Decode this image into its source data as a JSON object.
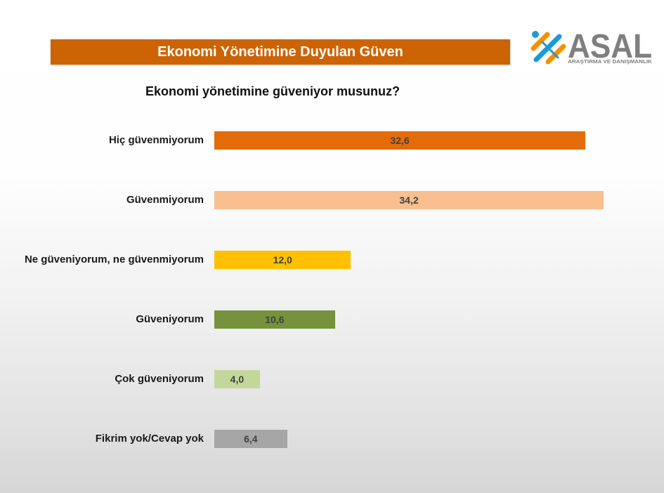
{
  "header": {
    "banner_title": "Ekonomi Yönetimine Duyulan Güven",
    "banner_color": "#CC6406"
  },
  "logo": {
    "name": "ASAL",
    "tagline": "ARAŞTIRMA VE DANIŞMANLIK",
    "text_color": "#7F7F7F",
    "accent_blue": "#1E9AD6",
    "accent_orange": "#F39200"
  },
  "chart_data": {
    "type": "bar",
    "orientation": "horizontal",
    "title": "Ekonomi yönetimine güveniyor musunuz?",
    "categories": [
      "Hiç güvenmiyorum",
      "Güvenmiyorum",
      "Ne güveniyorum, ne güvenmiyorum",
      "Güveniyorum",
      "Çok güveniyorum",
      "Fikrim yok/Cevap yok"
    ],
    "values": [
      32.6,
      34.2,
      12.0,
      10.6,
      4.0,
      6.4
    ],
    "data_labels": [
      "32,6",
      "34,2",
      "12,0",
      "10,6",
      "4,0",
      "6,4"
    ],
    "colors": [
      "#E36C09",
      "#F9BF8F",
      "#FFC000",
      "#76923C",
      "#C4D79B",
      "#A6A6A6"
    ],
    "xlabel": "",
    "ylabel": "",
    "grid": false,
    "legend": "none"
  }
}
